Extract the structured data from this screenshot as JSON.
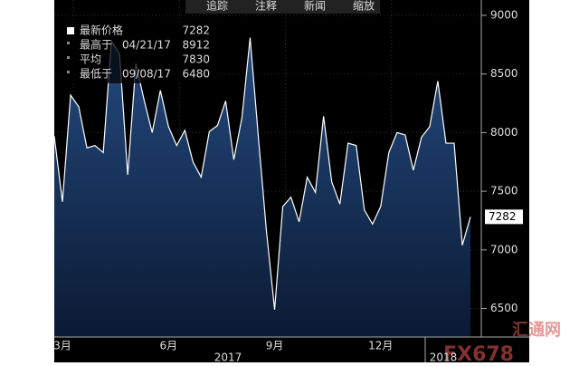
{
  "toolbar": [
    "追踪",
    "注释",
    "新闻",
    "缩放"
  ],
  "chart_data": {
    "type": "area",
    "categories": [
      null,
      "3月",
      null,
      null,
      null,
      null,
      null,
      null,
      null,
      null,
      null,
      null,
      null,
      null,
      "6月",
      null,
      null,
      null,
      null,
      null,
      null,
      null,
      null,
      null,
      null,
      null,
      null,
      "9月",
      null,
      null,
      null,
      null,
      null,
      null,
      null,
      null,
      null,
      null,
      null,
      null,
      "12月",
      null,
      null,
      null,
      null,
      null,
      null,
      null,
      null,
      null,
      null,
      null
    ],
    "x_group_labels": [
      "2017",
      "2018"
    ],
    "series": [
      {
        "name": "最新价格",
        "color": "#ffffff",
        "values": [
          7970,
          7410,
          8320,
          8220,
          7870,
          7890,
          7830,
          8780,
          8670,
          7640,
          8590,
          8280,
          8000,
          8360,
          8050,
          7890,
          8020,
          7750,
          7620,
          8010,
          8060,
          8270,
          7770,
          8130,
          8810,
          7970,
          7160,
          6490,
          7370,
          7450,
          7240,
          7620,
          7490,
          8140,
          7580,
          7390,
          7910,
          7890,
          7340,
          7220,
          7370,
          7830,
          8000,
          7980,
          7680,
          7960,
          8050,
          8440,
          7910,
          7910,
          7040,
          7282
        ]
      }
    ],
    "legend": [
      {
        "label": "最新价格",
        "value": 7282
      },
      {
        "label": "最高于",
        "date": "04/21/17",
        "value": 8912
      },
      {
        "label": "平均",
        "value": 7830
      },
      {
        "label": "最低于",
        "date": "09/08/17",
        "value": 6480
      }
    ],
    "ylim": [
      6257,
      9131
    ],
    "yticks": [
      6500,
      7000,
      7500,
      8000,
      8500,
      9000
    ],
    "grid": true
  },
  "watermark": [
    "FX678",
    "汇通网"
  ]
}
